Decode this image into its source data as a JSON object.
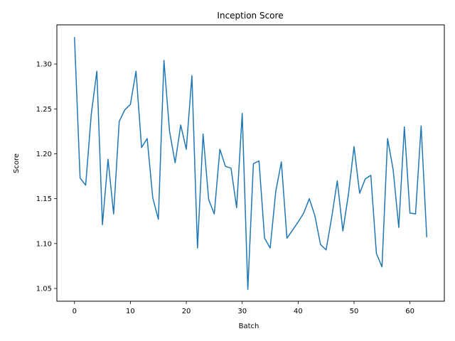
{
  "chart_data": {
    "type": "line",
    "title": "Inception Score",
    "xlabel": "Batch",
    "ylabel": "Score",
    "xlim": [
      -3.15,
      66.15
    ],
    "ylim": [
      1.0358,
      1.3436
    ],
    "xticks": [
      0,
      10,
      20,
      30,
      40,
      50,
      60
    ],
    "yticks": [
      1.05,
      1.1,
      1.15,
      1.2,
      1.25,
      1.3
    ],
    "xtick_labels": [
      "0",
      "10",
      "20",
      "30",
      "40",
      "50",
      "60"
    ],
    "ytick_labels": [
      "1.05",
      "1.10",
      "1.15",
      "1.20",
      "1.25",
      "1.30"
    ],
    "grid": false,
    "line_color": "#1f77b4",
    "series": [
      {
        "x": [
          0,
          1,
          2,
          3,
          4,
          5,
          6,
          7,
          8,
          9,
          10,
          11,
          12,
          13,
          14,
          15,
          16,
          17,
          18,
          19,
          20,
          21,
          22,
          23,
          24,
          25,
          26,
          27,
          28,
          29,
          30,
          31,
          32,
          33,
          34,
          35,
          36,
          37,
          38,
          39,
          40,
          41,
          42,
          43,
          44,
          45,
          46,
          47,
          48,
          49,
          50,
          51,
          52,
          53,
          54,
          55,
          56,
          57,
          58,
          59,
          60,
          61,
          62,
          63
        ],
        "values": [
          1.33,
          1.173,
          1.165,
          1.244,
          1.292,
          1.121,
          1.194,
          1.133,
          1.236,
          1.249,
          1.255,
          1.292,
          1.207,
          1.217,
          1.151,
          1.127,
          1.304,
          1.225,
          1.19,
          1.232,
          1.205,
          1.287,
          1.095,
          1.222,
          1.149,
          1.133,
          1.205,
          1.186,
          1.184,
          1.14,
          1.245,
          1.049,
          1.189,
          1.192,
          1.106,
          1.095,
          1.158,
          1.191,
          1.106,
          1.115,
          1.124,
          1.134,
          1.15,
          1.131,
          1.099,
          1.093,
          1.129,
          1.17,
          1.114,
          1.155,
          1.208,
          1.156,
          1.172,
          1.176,
          1.089,
          1.074,
          1.217,
          1.182,
          1.118,
          1.23,
          1.134,
          1.133,
          1.231,
          1.107
        ]
      }
    ]
  }
}
